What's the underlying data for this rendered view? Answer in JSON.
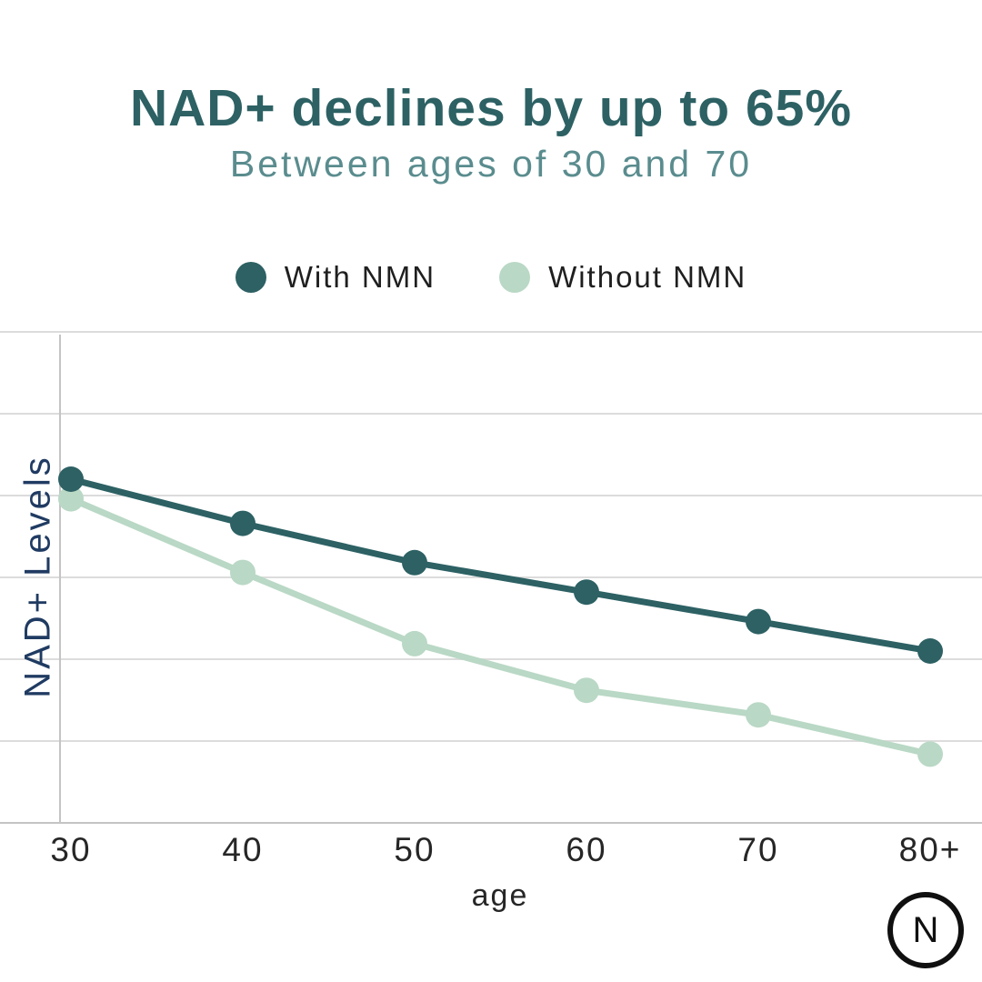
{
  "header": {
    "title": "NAD+ declines by up to 65%",
    "subtitle": "Between ages of 30 and 70",
    "title_color": "#2d6164",
    "subtitle_color": "#5a8c8e"
  },
  "chart_data": {
    "type": "line",
    "categories": [
      "30",
      "40",
      "50",
      "60",
      "70",
      "80+"
    ],
    "series": [
      {
        "name": "With NMN",
        "color": "#2d6164",
        "values": [
          70,
          61,
          53,
          47,
          41,
          35
        ]
      },
      {
        "name": "Without NMN",
        "color": "#b9d8c5",
        "values": [
          66,
          51,
          36.5,
          27,
          22,
          14
        ]
      }
    ],
    "title": "NAD+ declines by up to 65%",
    "subtitle": "Between ages of 30 and 70",
    "xlabel": "age",
    "ylabel": "NAD+ Levels",
    "ylim": [
      0,
      100
    ],
    "grid": "horizontal-only",
    "gridline_count": 7,
    "legend_position": "top-center",
    "markers": "filled-circles"
  },
  "axis_colors": {
    "gridline": "#dcdcdc",
    "axis_line": "#c4c4c4",
    "y_label_color": "#203b62",
    "tick_color": "#262626"
  },
  "logo": {
    "letter": "N"
  }
}
